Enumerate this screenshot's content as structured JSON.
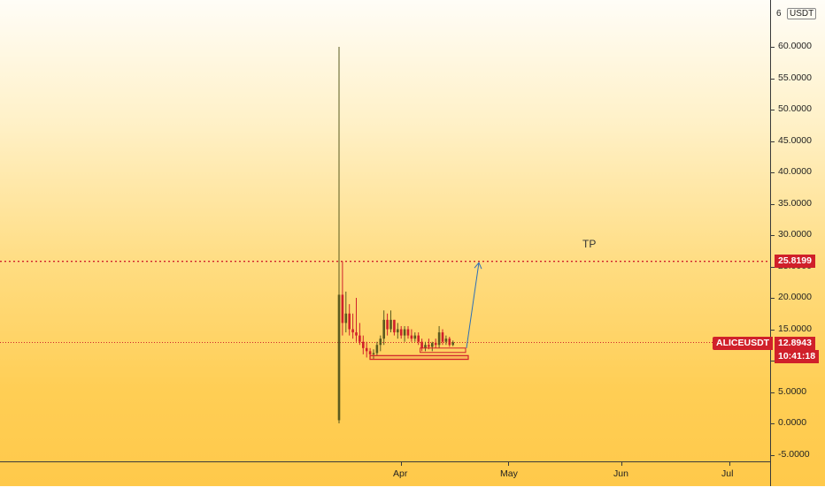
{
  "chart": {
    "currency": "USDT",
    "currency_prefix": "6",
    "symbol": "ALICEUSDT",
    "tp_label": "TP",
    "tp_price": "25.8199",
    "current_price": "12.8943",
    "countdown": "10:41:18",
    "colors": {
      "accent": "#d0202a",
      "up_candle": "#5a5a1e",
      "down_candle": "#d0202a",
      "target_line": "#d0202a",
      "axis": "#3a3a3a"
    }
  },
  "chart_data": {
    "type": "candlestick",
    "y_axis": {
      "ticks": [
        "60.0000",
        "55.0000",
        "50.0000",
        "45.0000",
        "40.0000",
        "35.0000",
        "30.0000",
        "25.0000",
        "20.0000",
        "15.0000",
        "10.0000",
        "5.0000",
        "0.0000",
        "-5.0000"
      ],
      "ylim": [
        -5,
        65
      ]
    },
    "x_axis": {
      "ticks": [
        "Apr",
        "May",
        "Jun",
        "Jul"
      ]
    },
    "target_price": 25.8199,
    "current_price": 12.8943,
    "candles": [
      {
        "o": 0.5,
        "h": 60.0,
        "l": 0.0,
        "c": 20.5
      },
      {
        "o": 20.5,
        "h": 25.8,
        "l": 14.0,
        "c": 16.0
      },
      {
        "o": 16.0,
        "h": 21.0,
        "l": 14.5,
        "c": 17.5
      },
      {
        "o": 17.5,
        "h": 19.0,
        "l": 14.0,
        "c": 15.0
      },
      {
        "o": 15.0,
        "h": 17.5,
        "l": 13.5,
        "c": 14.5
      },
      {
        "o": 14.5,
        "h": 20.0,
        "l": 13.0,
        "c": 14.0
      },
      {
        "o": 14.0,
        "h": 16.0,
        "l": 12.5,
        "c": 13.0
      },
      {
        "o": 13.0,
        "h": 14.0,
        "l": 11.0,
        "c": 12.0
      },
      {
        "o": 12.0,
        "h": 13.0,
        "l": 10.5,
        "c": 11.5
      },
      {
        "o": 11.5,
        "h": 12.0,
        "l": 10.5,
        "c": 11.0
      },
      {
        "o": 11.0,
        "h": 11.8,
        "l": 10.2,
        "c": 11.2
      },
      {
        "o": 11.2,
        "h": 13.0,
        "l": 10.8,
        "c": 12.5
      },
      {
        "o": 12.5,
        "h": 14.0,
        "l": 11.5,
        "c": 13.5
      },
      {
        "o": 13.5,
        "h": 18.0,
        "l": 12.5,
        "c": 16.5
      },
      {
        "o": 16.5,
        "h": 17.5,
        "l": 14.0,
        "c": 15.0
      },
      {
        "o": 15.0,
        "h": 18.0,
        "l": 14.5,
        "c": 16.5
      },
      {
        "o": 16.5,
        "h": 16.5,
        "l": 14.0,
        "c": 14.5
      },
      {
        "o": 14.5,
        "h": 16.0,
        "l": 13.5,
        "c": 15.0
      },
      {
        "o": 15.0,
        "h": 15.5,
        "l": 13.5,
        "c": 14.0
      },
      {
        "o": 14.0,
        "h": 15.5,
        "l": 13.0,
        "c": 15.0
      },
      {
        "o": 15.0,
        "h": 15.5,
        "l": 13.5,
        "c": 14.0
      },
      {
        "o": 14.0,
        "h": 15.0,
        "l": 13.0,
        "c": 13.5
      },
      {
        "o": 13.5,
        "h": 14.5,
        "l": 13.0,
        "c": 14.0
      },
      {
        "o": 14.0,
        "h": 14.5,
        "l": 12.5,
        "c": 13.0
      },
      {
        "o": 13.0,
        "h": 13.5,
        "l": 11.5,
        "c": 12.0
      },
      {
        "o": 12.0,
        "h": 13.0,
        "l": 11.5,
        "c": 12.5
      },
      {
        "o": 12.5,
        "h": 13.5,
        "l": 11.8,
        "c": 12.2
      },
      {
        "o": 12.2,
        "h": 13.0,
        "l": 11.5,
        "c": 12.8
      },
      {
        "o": 12.8,
        "h": 13.5,
        "l": 12.0,
        "c": 12.5
      },
      {
        "o": 12.5,
        "h": 15.5,
        "l": 12.0,
        "c": 14.5
      },
      {
        "o": 14.5,
        "h": 15.0,
        "l": 12.5,
        "c": 13.0
      },
      {
        "o": 13.0,
        "h": 14.0,
        "l": 12.5,
        "c": 13.5
      },
      {
        "o": 13.5,
        "h": 13.8,
        "l": 12.2,
        "c": 12.5
      },
      {
        "o": 12.5,
        "h": 13.2,
        "l": 12.3,
        "c": 12.9
      }
    ],
    "support_zone": {
      "top": 10.8,
      "bottom": 10.2
    },
    "second_zone": {
      "top": 12.0,
      "bottom": 11.3
    },
    "projection_arrow": {
      "from_price": 12.0,
      "to_price": 25.6
    }
  }
}
